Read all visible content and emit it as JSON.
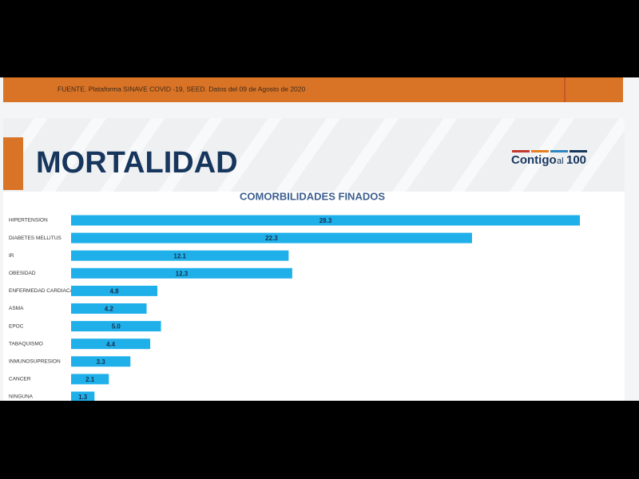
{
  "source": "FUENTE. Plataforma SINAVE COVID -19, SEED. Datos del 09 de Agosto de 2020",
  "heading": "MORTALIDAD",
  "logo": {
    "word": "Contigo",
    "small": "al",
    "number": "100"
  },
  "chart_data": {
    "type": "hbar",
    "title": "COMORBILIDADES FINADOS",
    "categories": [
      "HIPERTENSION",
      "DIABETES MELLITUS",
      "IR",
      "OBESIDAD",
      "ENFERMEDAD CARDIACA",
      "ASMA",
      "EPOC",
      "TABAQUISMO",
      "INMUNOSUPRESION",
      "CANCER",
      "NINGUNA"
    ],
    "values": [
      28.3,
      22.3,
      12.1,
      12.3,
      4.8,
      4.2,
      5.0,
      4.4,
      3.3,
      2.1,
      1.3
    ],
    "value_labels": [
      "28.3",
      "22.3",
      "12.1",
      "12.3",
      "4.8",
      "4.2",
      "5.0",
      "4.4",
      "3.3",
      "2.1",
      "1.3"
    ],
    "color": "#1fb0ea"
  }
}
